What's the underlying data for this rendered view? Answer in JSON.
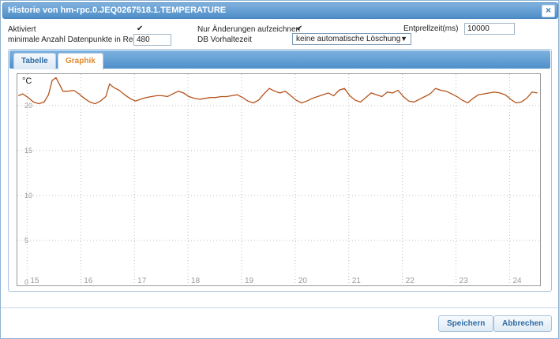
{
  "window": {
    "title": "Historie von hm-rpc.0.JEQ0267518.1.TEMPERATURE",
    "close_icon": "×"
  },
  "settings": {
    "aktiviert_label": "Aktiviert",
    "aktiviert_checked": true,
    "nur_aenderungen_label": "Nur Änderungen aufzeichnen",
    "nur_aenderungen_checked": true,
    "entprellzeit_label": "Entprellzeit(ms)",
    "entprellzeit_value": "10000",
    "min_datapoints_label": "minimale Anzahl Datenpunkte in Redis",
    "min_datapoints_value": "480",
    "db_vorhaltezeit_label": "DB Vorhaltezeit",
    "db_vorhaltezeit_value": "keine automatische Löschung",
    "check_mark": "✔",
    "dropdown_arrow": "▼"
  },
  "tabs": [
    {
      "label": "Tabelle",
      "active": false
    },
    {
      "label": "Graphik",
      "active": true
    }
  ],
  "buttons": {
    "save": "Speichern",
    "cancel": "Abbrechen"
  },
  "colors": {
    "line": "#b5531c",
    "accent": "#e08a2c",
    "titlebar": "#4d8ec7"
  },
  "chart_data": {
    "type": "line",
    "ylabel": "°C",
    "ylim": [
      0,
      23.5
    ],
    "xlim": [
      14.7,
      24.45
    ],
    "y_ticks": [
      0,
      5,
      10,
      15,
      20
    ],
    "x_ticks": [
      15,
      16,
      17,
      18,
      19,
      20,
      21,
      22,
      23,
      24
    ],
    "grid": true,
    "series": [
      {
        "points": [
          [
            14.72,
            21.1
          ],
          [
            14.8,
            21.3
          ],
          [
            14.9,
            20.9
          ],
          [
            15.0,
            20.4
          ],
          [
            15.1,
            20.2
          ],
          [
            15.2,
            20.4
          ],
          [
            15.28,
            21.2
          ],
          [
            15.35,
            22.8
          ],
          [
            15.42,
            23.1
          ],
          [
            15.5,
            22.2
          ],
          [
            15.55,
            21.6
          ],
          [
            15.65,
            21.6
          ],
          [
            15.75,
            21.7
          ],
          [
            15.85,
            21.3
          ],
          [
            15.95,
            20.8
          ],
          [
            16.05,
            20.4
          ],
          [
            16.15,
            20.2
          ],
          [
            16.25,
            20.5
          ],
          [
            16.35,
            21.0
          ],
          [
            16.42,
            22.4
          ],
          [
            16.5,
            22.0
          ],
          [
            16.6,
            21.7
          ],
          [
            16.7,
            21.2
          ],
          [
            16.8,
            20.8
          ],
          [
            16.9,
            20.5
          ],
          [
            17.0,
            20.7
          ],
          [
            17.1,
            20.9
          ],
          [
            17.2,
            21.0
          ],
          [
            17.3,
            21.1
          ],
          [
            17.4,
            21.1
          ],
          [
            17.5,
            21.0
          ],
          [
            17.6,
            21.3
          ],
          [
            17.7,
            21.6
          ],
          [
            17.8,
            21.4
          ],
          [
            17.9,
            21.0
          ],
          [
            18.0,
            20.8
          ],
          [
            18.1,
            20.7
          ],
          [
            18.2,
            20.8
          ],
          [
            18.3,
            20.9
          ],
          [
            18.4,
            20.9
          ],
          [
            18.5,
            21.0
          ],
          [
            18.6,
            21.0
          ],
          [
            18.7,
            21.1
          ],
          [
            18.8,
            21.2
          ],
          [
            18.9,
            20.9
          ],
          [
            19.0,
            20.5
          ],
          [
            19.1,
            20.3
          ],
          [
            19.2,
            20.6
          ],
          [
            19.3,
            21.3
          ],
          [
            19.4,
            21.9
          ],
          [
            19.5,
            21.6
          ],
          [
            19.6,
            21.4
          ],
          [
            19.7,
            21.6
          ],
          [
            19.8,
            21.1
          ],
          [
            19.9,
            20.6
          ],
          [
            20.0,
            20.3
          ],
          [
            20.1,
            20.5
          ],
          [
            20.2,
            20.8
          ],
          [
            20.3,
            21.0
          ],
          [
            20.4,
            21.2
          ],
          [
            20.5,
            21.4
          ],
          [
            20.6,
            21.1
          ],
          [
            20.7,
            21.7
          ],
          [
            20.8,
            21.9
          ],
          [
            20.9,
            21.1
          ],
          [
            21.0,
            20.6
          ],
          [
            21.1,
            20.4
          ],
          [
            21.2,
            20.9
          ],
          [
            21.3,
            21.4
          ],
          [
            21.4,
            21.2
          ],
          [
            21.5,
            21.0
          ],
          [
            21.6,
            21.5
          ],
          [
            21.7,
            21.4
          ],
          [
            21.8,
            21.7
          ],
          [
            21.9,
            21.0
          ],
          [
            22.0,
            20.5
          ],
          [
            22.1,
            20.4
          ],
          [
            22.2,
            20.7
          ],
          [
            22.3,
            21.0
          ],
          [
            22.4,
            21.3
          ],
          [
            22.5,
            21.9
          ],
          [
            22.6,
            21.7
          ],
          [
            22.7,
            21.6
          ],
          [
            22.8,
            21.3
          ],
          [
            22.9,
            21.0
          ],
          [
            23.0,
            20.6
          ],
          [
            23.1,
            20.3
          ],
          [
            23.2,
            20.8
          ],
          [
            23.3,
            21.2
          ],
          [
            23.4,
            21.3
          ],
          [
            23.5,
            21.4
          ],
          [
            23.6,
            21.5
          ],
          [
            23.7,
            21.4
          ],
          [
            23.8,
            21.2
          ],
          [
            23.9,
            20.7
          ],
          [
            24.0,
            20.3
          ],
          [
            24.1,
            20.4
          ],
          [
            24.2,
            20.8
          ],
          [
            24.3,
            21.5
          ],
          [
            24.4,
            21.4
          ]
        ]
      }
    ]
  }
}
